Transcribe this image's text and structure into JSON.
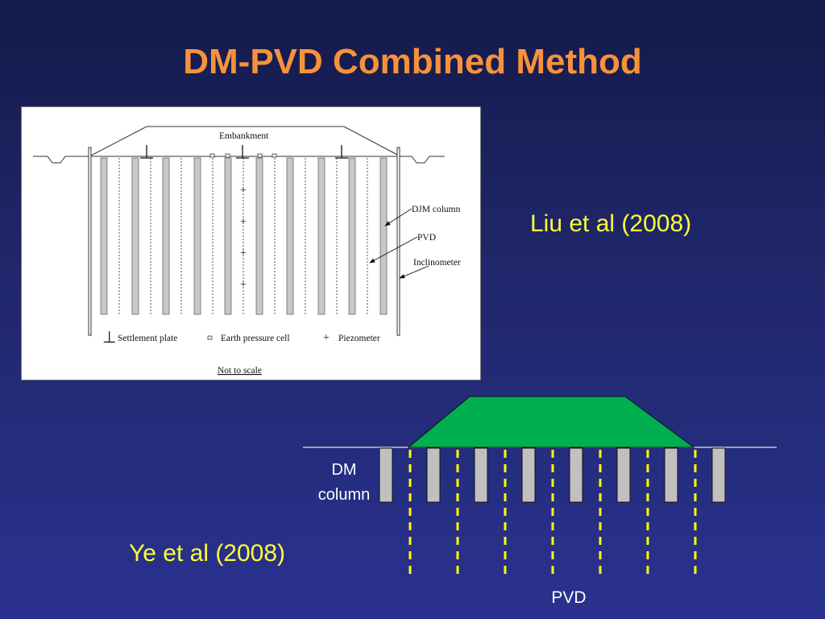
{
  "title": "DM-PVD Combined Method",
  "refs": {
    "liu": "Liu et al (2008)",
    "ye": "Ye et al (2008)"
  },
  "upper_figure": {
    "embankment_label": "Embankment",
    "djm_column_label": "DJM column",
    "pvd_label": "PVD",
    "inclinometer_label": "Inclinometer",
    "legend": {
      "settlement_symbol": "⊥",
      "settlement": "Settlement plate",
      "earth_pressure": "Earth pressure cell",
      "piezometer_symbol": "+",
      "piezometer": "Piezometer"
    },
    "note": "Not to scale",
    "colors": {
      "column_fill": "#c8c8c8",
      "line": "#333333"
    }
  },
  "lower_figure": {
    "dm_column_line1": "DM",
    "dm_column_line2": "column",
    "pvd_label": "PVD",
    "colors": {
      "embankment_fill": "#00b050",
      "column_fill": "#c0c0c0",
      "pvd_dash": "#ffff00",
      "ground_line": "#c8c8c8"
    }
  }
}
